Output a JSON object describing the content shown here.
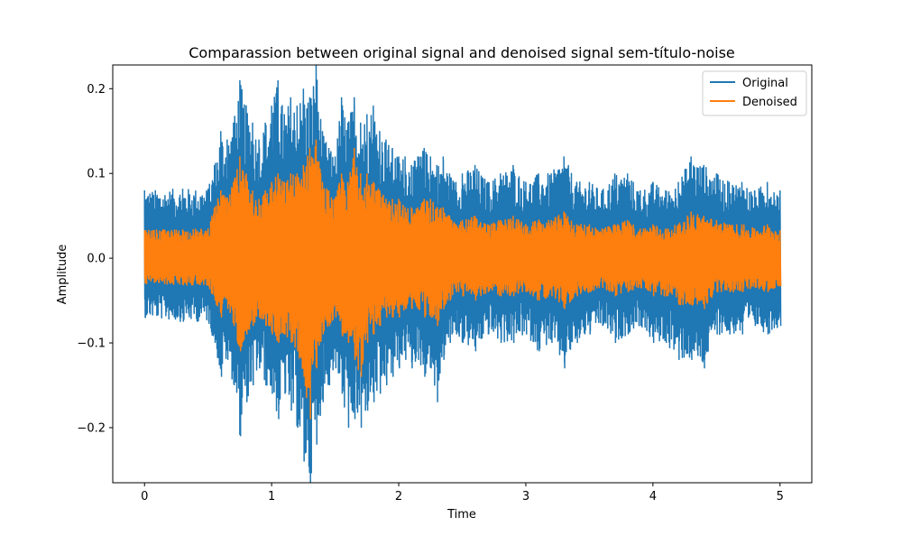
{
  "chart_data": {
    "type": "line",
    "title": "Comparassion between original signal and denoised signal sem-título-noise",
    "xlabel": "Time",
    "ylabel": "Amplitude",
    "xlim": [
      -0.25,
      5.25
    ],
    "ylim": [
      -0.265,
      0.228
    ],
    "xticks": [
      0,
      1,
      2,
      3,
      4,
      5
    ],
    "yticks": [
      -0.2,
      -0.1,
      0.0,
      0.1,
      0.2
    ],
    "xtick_labels": [
      "0",
      "1",
      "2",
      "3",
      "4",
      "5"
    ],
    "ytick_labels": [
      "−0.2",
      "−0.1",
      "0.0",
      "0.1",
      "0.2"
    ],
    "grid": false,
    "legend": {
      "position": "top-right"
    },
    "series": [
      {
        "name": "Original",
        "color": "#1f77b4",
        "envelope": {
          "time": [
            0.0,
            0.3,
            0.5,
            0.55,
            0.6,
            0.65,
            0.7,
            0.75,
            0.8,
            0.85,
            0.9,
            0.95,
            1.0,
            1.05,
            1.1,
            1.15,
            1.2,
            1.25,
            1.3,
            1.35,
            1.4,
            1.45,
            1.5,
            1.55,
            1.6,
            1.65,
            1.7,
            1.75,
            1.8,
            1.85,
            1.9,
            1.95,
            2.0,
            2.05,
            2.1,
            2.15,
            2.2,
            2.25,
            2.3,
            2.35,
            2.4,
            2.45,
            2.5,
            2.6,
            2.7,
            2.8,
            2.9,
            3.0,
            3.1,
            3.2,
            3.3,
            3.4,
            3.5,
            3.6,
            3.7,
            3.8,
            3.9,
            4.0,
            4.1,
            4.2,
            4.3,
            4.4,
            4.5,
            4.6,
            4.7,
            4.8,
            4.9,
            5.0
          ],
          "max": [
            0.08,
            0.082,
            0.082,
            0.11,
            0.15,
            0.14,
            0.16,
            0.21,
            0.18,
            0.16,
            0.14,
            0.16,
            0.18,
            0.21,
            0.17,
            0.19,
            0.18,
            0.2,
            0.19,
            0.228,
            0.15,
            0.13,
            0.12,
            0.19,
            0.16,
            0.19,
            0.16,
            0.17,
            0.18,
            0.15,
            0.14,
            0.13,
            0.12,
            0.12,
            0.11,
            0.12,
            0.13,
            0.12,
            0.11,
            0.12,
            0.1,
            0.09,
            0.1,
            0.11,
            0.09,
            0.1,
            0.11,
            0.09,
            0.1,
            0.1,
            0.12,
            0.09,
            0.09,
            0.08,
            0.1,
            0.1,
            0.08,
            0.09,
            0.08,
            0.09,
            0.12,
            0.11,
            0.1,
            0.09,
            0.09,
            0.08,
            0.09,
            0.08
          ],
          "min": [
            -0.07,
            -0.075,
            -0.075,
            -0.1,
            -0.14,
            -0.12,
            -0.15,
            -0.21,
            -0.17,
            -0.15,
            -0.13,
            -0.15,
            -0.16,
            -0.19,
            -0.16,
            -0.18,
            -0.2,
            -0.24,
            -0.265,
            -0.22,
            -0.17,
            -0.15,
            -0.13,
            -0.16,
            -0.2,
            -0.19,
            -0.2,
            -0.18,
            -0.17,
            -0.16,
            -0.15,
            -0.14,
            -0.13,
            -0.12,
            -0.13,
            -0.12,
            -0.14,
            -0.13,
            -0.17,
            -0.12,
            -0.1,
            -0.09,
            -0.1,
            -0.11,
            -0.09,
            -0.1,
            -0.1,
            -0.09,
            -0.11,
            -0.1,
            -0.13,
            -0.1,
            -0.09,
            -0.08,
            -0.1,
            -0.09,
            -0.08,
            -0.1,
            -0.1,
            -0.12,
            -0.12,
            -0.13,
            -0.09,
            -0.09,
            -0.09,
            -0.08,
            -0.09,
            -0.08
          ]
        }
      },
      {
        "name": "Denoised",
        "color": "#ff7f0e",
        "envelope": {
          "time": [
            0.0,
            0.3,
            0.5,
            0.55,
            0.6,
            0.65,
            0.7,
            0.75,
            0.8,
            0.85,
            0.9,
            0.95,
            1.0,
            1.05,
            1.1,
            1.15,
            1.2,
            1.25,
            1.3,
            1.35,
            1.4,
            1.45,
            1.5,
            1.55,
            1.6,
            1.65,
            1.7,
            1.75,
            1.8,
            1.85,
            1.9,
            1.95,
            2.0,
            2.05,
            2.1,
            2.15,
            2.2,
            2.25,
            2.3,
            2.35,
            2.4,
            2.45,
            2.5,
            2.6,
            2.7,
            2.8,
            2.9,
            3.0,
            3.1,
            3.2,
            3.3,
            3.4,
            3.5,
            3.6,
            3.7,
            3.8,
            3.9,
            4.0,
            4.1,
            4.2,
            4.3,
            4.4,
            4.5,
            4.6,
            4.7,
            4.8,
            4.9,
            5.0
          ],
          "max": [
            0.033,
            0.034,
            0.035,
            0.06,
            0.08,
            0.07,
            0.09,
            0.12,
            0.1,
            0.08,
            0.07,
            0.08,
            0.09,
            0.1,
            0.09,
            0.1,
            0.1,
            0.11,
            0.13,
            0.14,
            0.09,
            0.08,
            0.07,
            0.1,
            0.09,
            0.13,
            0.1,
            0.1,
            0.09,
            0.08,
            0.07,
            0.07,
            0.07,
            0.06,
            0.06,
            0.06,
            0.07,
            0.07,
            0.06,
            0.06,
            0.05,
            0.04,
            0.045,
            0.05,
            0.04,
            0.045,
            0.05,
            0.04,
            0.045,
            0.045,
            0.055,
            0.04,
            0.04,
            0.035,
            0.04,
            0.045,
            0.035,
            0.04,
            0.035,
            0.04,
            0.055,
            0.05,
            0.045,
            0.04,
            0.04,
            0.035,
            0.04,
            0.033
          ],
          "min": [
            -0.03,
            -0.032,
            -0.032,
            -0.05,
            -0.07,
            -0.06,
            -0.08,
            -0.11,
            -0.09,
            -0.08,
            -0.07,
            -0.08,
            -0.09,
            -0.1,
            -0.09,
            -0.1,
            -0.11,
            -0.14,
            -0.19,
            -0.13,
            -0.09,
            -0.08,
            -0.07,
            -0.09,
            -0.1,
            -0.12,
            -0.14,
            -0.1,
            -0.09,
            -0.08,
            -0.07,
            -0.07,
            -0.07,
            -0.06,
            -0.06,
            -0.06,
            -0.07,
            -0.07,
            -0.08,
            -0.06,
            -0.05,
            -0.04,
            -0.045,
            -0.05,
            -0.04,
            -0.045,
            -0.045,
            -0.04,
            -0.05,
            -0.045,
            -0.06,
            -0.045,
            -0.04,
            -0.035,
            -0.045,
            -0.04,
            -0.035,
            -0.045,
            -0.045,
            -0.055,
            -0.055,
            -0.06,
            -0.04,
            -0.04,
            -0.04,
            -0.035,
            -0.04,
            -0.033
          ]
        }
      }
    ]
  }
}
